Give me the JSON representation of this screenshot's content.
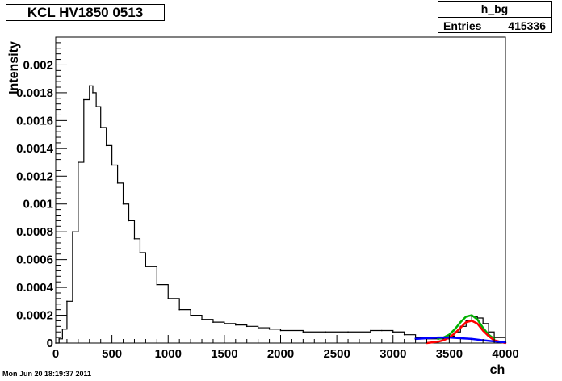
{
  "header": {
    "title": "KCL HV1850 0513"
  },
  "stats": {
    "name": "h_bg",
    "entries_label": "Entries",
    "entries_value": "415336"
  },
  "footer": {
    "timestamp": "Mon Jun 20 18:19:37 2011"
  },
  "chart_data": {
    "type": "line",
    "title": "KCL HV1850 0513",
    "xlabel": "ch",
    "ylabel": "Intensity",
    "xlim": [
      0,
      4000
    ],
    "ylim": [
      0,
      0.0022
    ],
    "x_ticks": [
      0,
      500,
      1000,
      1500,
      2000,
      2500,
      3000,
      3500,
      4000
    ],
    "x_tick_labels": [
      "0",
      "500",
      "1000",
      "1500",
      "2000",
      "2500",
      "3000",
      "3500",
      "4000"
    ],
    "y_ticks": [
      0,
      0.0002,
      0.0004,
      0.0006,
      0.0008,
      0.001,
      0.0012,
      0.0014,
      0.0016,
      0.0018,
      0.002
    ],
    "y_tick_labels": [
      "0",
      "0.0002",
      "0.0004",
      "0.0006",
      "0.0008",
      "0.001",
      "0.0012",
      "0.0014",
      "0.0016",
      "0.0018",
      "0.002"
    ],
    "grid": false,
    "colors": {
      "histogram": "#000000",
      "total_fit": "#00b000",
      "peak_fit": "#ff0000",
      "background_fit": "#0000ff"
    },
    "series": [
      {
        "style": "histogram",
        "x": [
          0,
          30,
          60,
          100,
          150,
          200,
          250,
          300,
          330,
          360,
          400,
          450,
          500,
          550,
          600,
          650,
          700,
          750,
          800,
          900,
          1000,
          1100,
          1200,
          1300,
          1400,
          1500,
          1600,
          1700,
          1800,
          1900,
          2000,
          2200,
          2400,
          2600,
          2800,
          2900,
          3000,
          3100,
          3200,
          3300,
          3400,
          3500,
          3550,
          3600,
          3650,
          3700,
          3750,
          3800,
          3850,
          3900,
          4000
        ],
        "values": [
          0.0,
          3e-05,
          0.0001,
          0.0003,
          0.0008,
          0.0013,
          0.00175,
          0.00185,
          0.0018,
          0.0017,
          0.00155,
          0.00142,
          0.00128,
          0.00115,
          0.001,
          0.00088,
          0.00075,
          0.00065,
          0.00055,
          0.00042,
          0.00032,
          0.00024,
          0.0002,
          0.00017,
          0.00015,
          0.00014,
          0.00013,
          0.00012,
          0.00011,
          0.0001,
          9e-05,
          8e-05,
          8e-05,
          8e-05,
          9e-05,
          9e-05,
          8e-05,
          6e-05,
          4e-05,
          3e-05,
          3e-05,
          5e-05,
          8e-05,
          0.00012,
          0.00016,
          0.00019,
          0.00018,
          0.00014,
          8e-05,
          4e-05,
          1e-05
        ]
      },
      {
        "style": "fit",
        "color_key": "total_fit",
        "x": [
          3400,
          3450,
          3500,
          3550,
          3600,
          3650,
          3700,
          3750,
          3800,
          3850,
          3900
        ],
        "values": [
          3e-05,
          4e-05,
          6e-05,
          0.0001,
          0.00015,
          0.00019,
          0.0002,
          0.00017,
          0.00011,
          6e-05,
          3e-05
        ]
      },
      {
        "style": "fit",
        "color_key": "peak_fit",
        "x": [
          3300,
          3400,
          3450,
          3500,
          3550,
          3600,
          3650,
          3700,
          3750,
          3800,
          3850,
          3900,
          3950,
          4000
        ],
        "values": [
          0.0,
          1e-05,
          2e-05,
          4e-05,
          7e-05,
          0.00011,
          0.00015,
          0.00016,
          0.00014,
          9e-05,
          5e-05,
          2e-05,
          1e-05,
          0.0
        ]
      },
      {
        "style": "fit",
        "color_key": "background_fit",
        "x": [
          3200,
          3300,
          3400,
          3500,
          3600,
          3700,
          3800,
          3900,
          4000
        ],
        "values": [
          3e-05,
          3.5e-05,
          4e-05,
          4e-05,
          3.5e-05,
          3e-05,
          2e-05,
          1.2e-05,
          5e-06
        ]
      }
    ]
  }
}
